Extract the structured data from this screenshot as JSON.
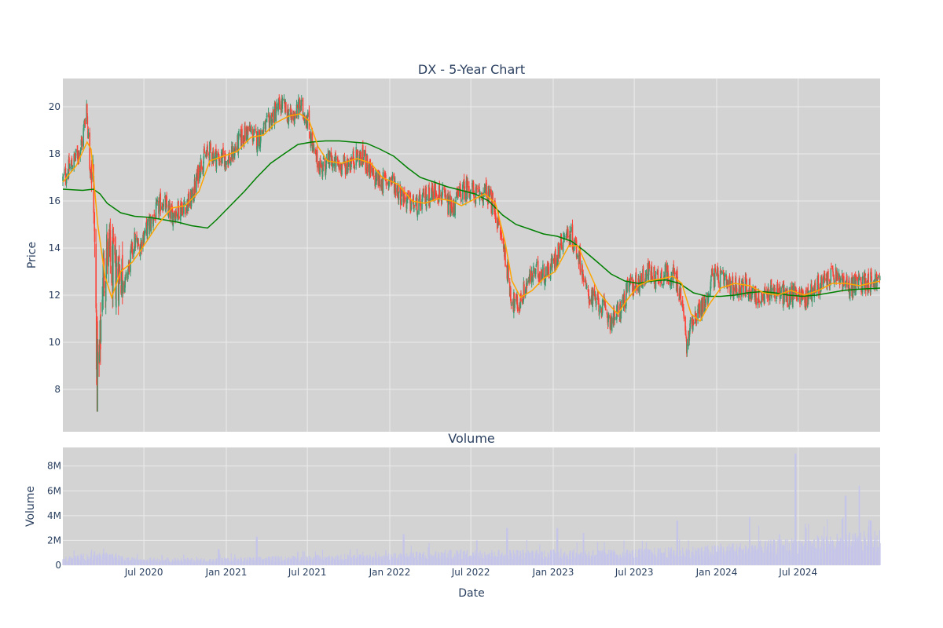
{
  "colors": {
    "plot_bg": "#d3d3d3",
    "grid": "#ebebeb",
    "text": "#2a3f5f",
    "candle_up": "#3d9970",
    "candle_down": "#ff4136",
    "ma_short": "#ffa500",
    "ma_long": "#008000",
    "volume_bar": "#c5c5ea"
  },
  "chart_data": [
    {
      "type": "candlestick",
      "title": "DX - 5-Year Chart",
      "xlabel": "",
      "ylabel": "Price",
      "x_range": [
        "2020-01-02",
        "2024-12-31"
      ],
      "ylim": [
        6.2,
        21.2
      ],
      "y_ticks": [
        8,
        10,
        12,
        14,
        16,
        18,
        20
      ],
      "grid": true,
      "legend": "none",
      "price_path": [
        [
          "2020-01-02",
          16.9
        ],
        [
          "2020-01-20",
          17.5
        ],
        [
          "2020-02-05",
          18.0
        ],
        [
          "2020-02-15",
          18.6
        ],
        [
          "2020-02-24",
          20.1
        ],
        [
          "2020-03-02",
          17.6
        ],
        [
          "2020-03-09",
          17.2
        ],
        [
          "2020-03-13",
          14.0
        ],
        [
          "2020-03-18",
          9.2
        ],
        [
          "2020-03-23",
          8.6
        ],
        [
          "2020-03-30",
          12.6
        ],
        [
          "2020-04-10",
          13.8
        ],
        [
          "2020-04-25",
          12.8
        ],
        [
          "2020-05-10",
          13.3
        ],
        [
          "2020-05-20",
          12.4
        ],
        [
          "2020-06-01",
          13.6
        ],
        [
          "2020-06-10",
          14.3
        ],
        [
          "2020-06-20",
          14.0
        ],
        [
          "2020-07-01",
          14.6
        ],
        [
          "2020-07-20",
          15.2
        ],
        [
          "2020-08-10",
          16.0
        ],
        [
          "2020-09-01",
          15.4
        ],
        [
          "2020-09-25",
          15.8
        ],
        [
          "2020-10-15",
          16.0
        ],
        [
          "2020-11-05",
          17.6
        ],
        [
          "2020-11-25",
          18.1
        ],
        [
          "2020-12-15",
          17.8
        ],
        [
          "2021-01-10",
          17.8
        ],
        [
          "2021-02-01",
          18.6
        ],
        [
          "2021-02-20",
          19.0
        ],
        [
          "2021-03-10",
          18.6
        ],
        [
          "2021-04-01",
          19.2
        ],
        [
          "2021-04-20",
          19.8
        ],
        [
          "2021-05-05",
          20.1
        ],
        [
          "2021-05-25",
          19.5
        ],
        [
          "2021-06-15",
          20.0
        ],
        [
          "2021-07-01",
          19.5
        ],
        [
          "2021-07-15",
          18.0
        ],
        [
          "2021-08-01",
          17.4
        ],
        [
          "2021-08-20",
          17.7
        ],
        [
          "2021-09-10",
          17.5
        ],
        [
          "2021-10-01",
          17.6
        ],
        [
          "2021-10-20",
          17.9
        ],
        [
          "2021-11-05",
          17.8
        ],
        [
          "2021-11-25",
          17.0
        ],
        [
          "2021-12-15",
          16.8
        ],
        [
          "2022-01-05",
          16.9
        ],
        [
          "2022-01-25",
          16.3
        ],
        [
          "2022-02-15",
          15.9
        ],
        [
          "2022-03-05",
          15.8
        ],
        [
          "2022-03-25",
          16.2
        ],
        [
          "2022-04-15",
          16.5
        ],
        [
          "2022-05-05",
          16.0
        ],
        [
          "2022-05-20",
          15.6
        ],
        [
          "2022-06-05",
          16.3
        ],
        [
          "2022-06-25",
          16.6
        ],
        [
          "2022-07-15",
          16.2
        ],
        [
          "2022-08-05",
          16.4
        ],
        [
          "2022-08-25",
          15.5
        ],
        [
          "2022-09-15",
          13.8
        ],
        [
          "2022-09-30",
          11.8
        ],
        [
          "2022-10-15",
          11.5
        ],
        [
          "2022-11-05",
          12.6
        ],
        [
          "2022-11-25",
          13.0
        ],
        [
          "2022-12-15",
          12.9
        ],
        [
          "2023-01-05",
          13.5
        ],
        [
          "2023-01-25",
          14.6
        ],
        [
          "2023-02-10",
          14.5
        ],
        [
          "2023-03-01",
          13.6
        ],
        [
          "2023-03-15",
          12.2
        ],
        [
          "2023-03-31",
          11.8
        ],
        [
          "2023-04-20",
          11.5
        ],
        [
          "2023-05-10",
          10.9
        ],
        [
          "2023-05-31",
          11.4
        ],
        [
          "2023-06-20",
          12.4
        ],
        [
          "2023-07-10",
          12.5
        ],
        [
          "2023-08-01",
          13.0
        ],
        [
          "2023-08-20",
          12.7
        ],
        [
          "2023-09-10",
          12.9
        ],
        [
          "2023-09-30",
          12.8
        ],
        [
          "2023-10-15",
          11.8
        ],
        [
          "2023-10-27",
          9.7
        ],
        [
          "2023-11-05",
          10.9
        ],
        [
          "2023-11-25",
          11.4
        ],
        [
          "2023-12-10",
          11.8
        ],
        [
          "2023-12-20",
          12.8
        ],
        [
          "2024-01-10",
          12.7
        ],
        [
          "2024-02-01",
          12.3
        ],
        [
          "2024-03-01",
          12.4
        ],
        [
          "2024-03-20",
          12.2
        ],
        [
          "2024-04-10",
          11.7
        ],
        [
          "2024-05-01",
          12.3
        ],
        [
          "2024-05-20",
          12.1
        ],
        [
          "2024-06-10",
          11.9
        ],
        [
          "2024-06-28",
          12.2
        ],
        [
          "2024-07-15",
          11.8
        ],
        [
          "2024-08-05",
          12.3
        ],
        [
          "2024-08-25",
          12.5
        ],
        [
          "2024-09-15",
          12.8
        ],
        [
          "2024-10-01",
          12.7
        ],
        [
          "2024-10-20",
          12.3
        ],
        [
          "2024-11-10",
          12.5
        ],
        [
          "2024-12-01",
          12.6
        ],
        [
          "2024-12-31",
          12.6
        ]
      ],
      "moving_average_short": [
        [
          "2020-01-02",
          16.8
        ],
        [
          "2020-02-01",
          17.5
        ],
        [
          "2020-02-25",
          18.5
        ],
        [
          "2020-03-05",
          18.2
        ],
        [
          "2020-03-20",
          15.0
        ],
        [
          "2020-04-05",
          12.8
        ],
        [
          "2020-04-20",
          11.9
        ],
        [
          "2020-05-10",
          13.0
        ],
        [
          "2020-06-05",
          13.4
        ],
        [
          "2020-07-01",
          14.1
        ],
        [
          "2020-08-01",
          15.0
        ],
        [
          "2020-09-01",
          15.7
        ],
        [
          "2020-10-01",
          15.8
        ],
        [
          "2020-11-01",
          16.4
        ],
        [
          "2020-11-25",
          17.7
        ],
        [
          "2020-12-25",
          17.9
        ],
        [
          "2021-01-25",
          18.1
        ],
        [
          "2021-02-25",
          18.7
        ],
        [
          "2021-03-25",
          18.8
        ],
        [
          "2021-04-20",
          19.3
        ],
        [
          "2021-05-20",
          19.6
        ],
        [
          "2021-06-15",
          19.7
        ],
        [
          "2021-07-05",
          19.4
        ],
        [
          "2021-07-25",
          18.3
        ],
        [
          "2021-08-15",
          17.7
        ],
        [
          "2021-09-15",
          17.6
        ],
        [
          "2021-10-20",
          17.8
        ],
        [
          "2021-11-20",
          17.6
        ],
        [
          "2021-12-15",
          17.0
        ],
        [
          "2022-01-20",
          16.7
        ],
        [
          "2022-02-20",
          16.0
        ],
        [
          "2022-03-20",
          15.9
        ],
        [
          "2022-04-20",
          16.1
        ],
        [
          "2022-05-20",
          16.0
        ],
        [
          "2022-06-10",
          15.8
        ],
        [
          "2022-07-01",
          16.0
        ],
        [
          "2022-08-01",
          16.3
        ],
        [
          "2022-08-25",
          15.9
        ],
        [
          "2022-09-15",
          14.3
        ],
        [
          "2022-10-01",
          12.6
        ],
        [
          "2022-10-20",
          11.9
        ],
        [
          "2022-11-15",
          12.2
        ],
        [
          "2022-12-10",
          12.7
        ],
        [
          "2023-01-05",
          13.0
        ],
        [
          "2023-02-05",
          14.1
        ],
        [
          "2023-02-25",
          14.1
        ],
        [
          "2023-03-20",
          13.1
        ],
        [
          "2023-04-10",
          12.2
        ],
        [
          "2023-05-01",
          11.7
        ],
        [
          "2023-05-25",
          11.2
        ],
        [
          "2023-06-15",
          11.8
        ],
        [
          "2023-07-10",
          12.4
        ],
        [
          "2023-08-01",
          12.6
        ],
        [
          "2023-09-01",
          12.7
        ],
        [
          "2023-09-25",
          12.8
        ],
        [
          "2023-10-15",
          12.5
        ],
        [
          "2023-11-05",
          11.2
        ],
        [
          "2023-11-25",
          10.9
        ],
        [
          "2023-12-15",
          11.6
        ],
        [
          "2024-01-10",
          12.3
        ],
        [
          "2024-02-10",
          12.5
        ],
        [
          "2024-03-15",
          12.4
        ],
        [
          "2024-04-15",
          12.1
        ],
        [
          "2024-05-15",
          12.0
        ],
        [
          "2024-06-15",
          12.2
        ],
        [
          "2024-07-15",
          12.0
        ],
        [
          "2024-08-15",
          12.2
        ],
        [
          "2024-09-15",
          12.5
        ],
        [
          "2024-10-15",
          12.5
        ],
        [
          "2024-11-15",
          12.4
        ],
        [
          "2024-12-31",
          12.6
        ]
      ],
      "moving_average_long": [
        [
          "2020-01-02",
          16.5
        ],
        [
          "2020-02-15",
          16.45
        ],
        [
          "2020-03-10",
          16.5
        ],
        [
          "2020-03-25",
          16.3
        ],
        [
          "2020-04-10",
          15.9
        ],
        [
          "2020-05-10",
          15.5
        ],
        [
          "2020-06-10",
          15.35
        ],
        [
          "2020-07-15",
          15.3
        ],
        [
          "2020-08-15",
          15.2
        ],
        [
          "2020-09-15",
          15.1
        ],
        [
          "2020-10-15",
          14.95
        ],
        [
          "2020-11-20",
          14.85
        ],
        [
          "2020-12-10",
          15.2
        ],
        [
          "2021-01-10",
          15.8
        ],
        [
          "2021-02-10",
          16.4
        ],
        [
          "2021-03-10",
          17.0
        ],
        [
          "2021-04-10",
          17.6
        ],
        [
          "2021-05-10",
          18.0
        ],
        [
          "2021-06-10",
          18.4
        ],
        [
          "2021-07-10",
          18.5
        ],
        [
          "2021-08-10",
          18.55
        ],
        [
          "2021-09-10",
          18.55
        ],
        [
          "2021-10-10",
          18.5
        ],
        [
          "2021-11-10",
          18.45
        ],
        [
          "2021-12-10",
          18.2
        ],
        [
          "2022-01-10",
          17.9
        ],
        [
          "2022-02-10",
          17.4
        ],
        [
          "2022-03-10",
          17.0
        ],
        [
          "2022-04-10",
          16.8
        ],
        [
          "2022-05-10",
          16.6
        ],
        [
          "2022-06-10",
          16.45
        ],
        [
          "2022-07-10",
          16.3
        ],
        [
          "2022-08-10",
          16.0
        ],
        [
          "2022-09-10",
          15.4
        ],
        [
          "2022-10-10",
          15.0
        ],
        [
          "2022-11-10",
          14.8
        ],
        [
          "2022-12-10",
          14.6
        ],
        [
          "2023-01-10",
          14.5
        ],
        [
          "2023-02-10",
          14.3
        ],
        [
          "2023-03-10",
          13.9
        ],
        [
          "2023-04-10",
          13.4
        ],
        [
          "2023-05-10",
          12.9
        ],
        [
          "2023-06-10",
          12.6
        ],
        [
          "2023-07-10",
          12.5
        ],
        [
          "2023-08-10",
          12.6
        ],
        [
          "2023-09-10",
          12.65
        ],
        [
          "2023-10-10",
          12.5
        ],
        [
          "2023-11-10",
          12.1
        ],
        [
          "2023-12-10",
          11.95
        ],
        [
          "2024-01-10",
          11.95
        ],
        [
          "2024-02-10",
          12.0
        ],
        [
          "2024-03-10",
          12.1
        ],
        [
          "2024-04-10",
          12.15
        ],
        [
          "2024-05-10",
          12.1
        ],
        [
          "2024-06-10",
          12.0
        ],
        [
          "2024-07-10",
          11.95
        ],
        [
          "2024-08-10",
          12.0
        ],
        [
          "2024-09-10",
          12.1
        ],
        [
          "2024-10-10",
          12.2
        ],
        [
          "2024-11-10",
          12.25
        ],
        [
          "2024-12-31",
          12.3
        ]
      ]
    },
    {
      "type": "bar",
      "title": "Volume",
      "xlabel": "Date",
      "ylabel": "Volume",
      "x_range": [
        "2020-01-02",
        "2024-12-31"
      ],
      "ylim": [
        0,
        9500000
      ],
      "y_ticks": [
        0,
        2000000,
        4000000,
        6000000,
        8000000
      ],
      "y_tick_labels": [
        "0",
        "2M",
        "4M",
        "6M",
        "8M"
      ],
      "x_ticks": [
        "2020-07-01",
        "2021-01-01",
        "2021-07-01",
        "2022-01-01",
        "2022-07-01",
        "2023-01-01",
        "2023-07-01",
        "2024-01-01",
        "2024-07-01"
      ],
      "x_tick_labels": [
        "Jul 2020",
        "Jan 2021",
        "Jul 2021",
        "Jan 2022",
        "Jul 2022",
        "Jan 2023",
        "Jul 2023",
        "Jan 2024",
        "Jul 2024"
      ],
      "grid": true,
      "baseline_levels": [
        [
          "2020-01-02",
          450000
        ],
        [
          "2020-03-15",
          800000
        ],
        [
          "2020-06-01",
          450000
        ],
        [
          "2020-12-01",
          400000
        ],
        [
          "2021-06-01",
          550000
        ],
        [
          "2021-12-01",
          650000
        ],
        [
          "2022-06-01",
          900000
        ],
        [
          "2022-12-01",
          900000
        ],
        [
          "2023-06-01",
          900000
        ],
        [
          "2023-12-01",
          1100000
        ],
        [
          "2024-06-01",
          1500000
        ],
        [
          "2024-12-31",
          2000000
        ]
      ],
      "peaks": [
        [
          "2020-12-15",
          1300000
        ],
        [
          "2021-03-10",
          2300000
        ],
        [
          "2022-02-01",
          2500000
        ],
        [
          "2022-07-15",
          2000000
        ],
        [
          "2022-09-20",
          3000000
        ],
        [
          "2023-01-10",
          3000000
        ],
        [
          "2023-03-10",
          2600000
        ],
        [
          "2023-10-05",
          3600000
        ],
        [
          "2024-03-15",
          3900000
        ],
        [
          "2024-05-20",
          2500000
        ],
        [
          "2024-06-25",
          9000000
        ],
        [
          "2024-07-20",
          3000000
        ],
        [
          "2024-10-15",
          5600000
        ],
        [
          "2024-11-15",
          6400000
        ],
        [
          "2024-12-10",
          3600000
        ]
      ]
    }
  ],
  "texts": {
    "price_title": "DX - 5-Year Chart",
    "price_ylabel": "Price",
    "volume_title": "Volume",
    "volume_ylabel": "Volume",
    "volume_xlabel": "Date"
  }
}
